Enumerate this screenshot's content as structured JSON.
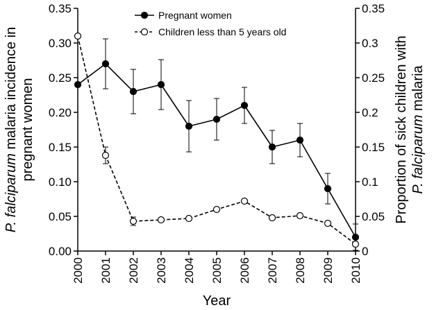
{
  "chart_data": {
    "type": "line",
    "title": "",
    "xlabel": "Year",
    "ylabel_left": {
      "italic": "P. falciparum",
      "rest": " malaria incidence in",
      "line2": "pregnant women"
    },
    "ylabel_right": {
      "line1": "Proportion of sick children with",
      "italic": "P. falciparum",
      "rest": " malaria"
    },
    "x": [
      2000,
      2001,
      2002,
      2003,
      2004,
      2005,
      2006,
      2007,
      2008,
      2009,
      2010
    ],
    "x_tick_labels": [
      "2000",
      "2001",
      "2002",
      "2003",
      "2004",
      "2005",
      "2006",
      "2007",
      "2008",
      "2009",
      "2010"
    ],
    "ylim_left": [
      0,
      0.35
    ],
    "ylim_right": [
      0,
      0.35
    ],
    "left_tick_labels": [
      "0.00",
      "0.05",
      "0.10",
      "0.15",
      "0.20",
      "0.25",
      "0.30",
      "0.35"
    ],
    "right_tick_labels": [
      "0",
      "0.05",
      "0.1",
      "0.15",
      "0.2",
      "0.25",
      "0.3",
      "0.35"
    ],
    "tick_values": [
      0,
      0.05,
      0.1,
      0.15,
      0.2,
      0.25,
      0.3,
      0.35
    ],
    "grid": false,
    "legend_position": "top-center",
    "series": [
      {
        "name": "Pregnant women",
        "axis": "left",
        "style": "solid",
        "marker": "filled-circle",
        "values": [
          0.24,
          0.27,
          0.23,
          0.24,
          0.18,
          0.19,
          0.21,
          0.15,
          0.16,
          0.09,
          0.02
        ],
        "error": [
          0.0,
          0.036,
          0.032,
          0.036,
          0.037,
          0.03,
          0.026,
          0.024,
          0.024,
          0.022,
          0.019
        ]
      },
      {
        "name": "Children less than 5 years old",
        "axis": "right",
        "style": "dashed",
        "marker": "open-circle",
        "values": [
          0.31,
          0.138,
          0.043,
          0.045,
          0.047,
          0.06,
          0.072,
          0.048,
          0.051,
          0.04,
          0.01
        ],
        "error": [
          0.0,
          0.012,
          0.006,
          0.0,
          0.0,
          0.0,
          0.0,
          0.0,
          0.0,
          0.0,
          0.0
        ]
      }
    ]
  }
}
